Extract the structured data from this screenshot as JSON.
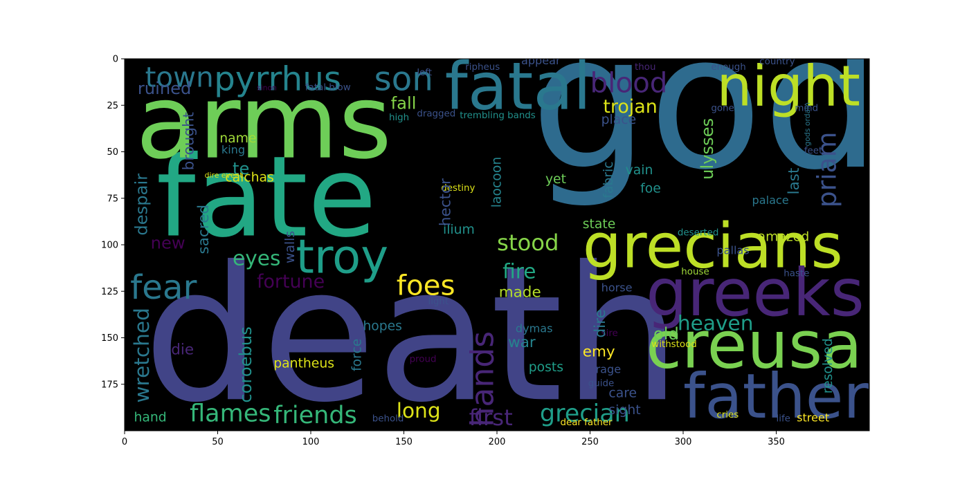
{
  "chart_data": {
    "type": "wordcloud-image",
    "title": "",
    "xlabel": "",
    "ylabel": "",
    "xlim": [
      0,
      400
    ],
    "ylim": [
      200,
      0
    ],
    "xticks": [
      0,
      50,
      100,
      150,
      200,
      250,
      300,
      350
    ],
    "yticks": [
      0,
      25,
      50,
      75,
      100,
      125,
      150,
      175
    ],
    "background": "#000000",
    "words": [
      {
        "text": "gods",
        "x": 218,
        "y": 58,
        "size": 100,
        "color": "#2e6b8e",
        "rot": 0
      },
      {
        "text": "death",
        "x": 10,
        "y": 183,
        "size": 100,
        "color": "#414487",
        "rot": 0
      },
      {
        "text": "fate",
        "x": 17,
        "y": 95,
        "size": 60,
        "color": "#22a884",
        "rot": 0
      },
      {
        "text": "arms",
        "x": 6,
        "y": 53,
        "size": 55,
        "color": "#6ece58",
        "rot": 0
      },
      {
        "text": "fatal",
        "x": 172,
        "y": 27,
        "size": 35,
        "color": "#2a788e",
        "rot": 0
      },
      {
        "text": "night",
        "x": 318,
        "y": 25,
        "size": 30,
        "color": "#bddf26",
        "rot": 0
      },
      {
        "text": "grecians",
        "x": 246,
        "y": 112,
        "size": 33,
        "color": "#bddf26",
        "rot": 0
      },
      {
        "text": "greeks",
        "x": 280,
        "y": 138,
        "size": 35,
        "color": "#482677",
        "rot": 0
      },
      {
        "text": "creusa",
        "x": 280,
        "y": 166,
        "size": 35,
        "color": "#7ad151",
        "rot": 0
      },
      {
        "text": "father",
        "x": 300,
        "y": 193,
        "size": 33,
        "color": "#3b528b",
        "rot": 0
      },
      {
        "text": "troy",
        "x": 92,
        "y": 115,
        "size": 25,
        "color": "#1f9e89",
        "rot": 0
      },
      {
        "text": "pyrrhus",
        "x": 48,
        "y": 17,
        "size": 18,
        "color": "#25848e",
        "rot": 0
      },
      {
        "text": "son",
        "x": 134,
        "y": 17,
        "size": 18,
        "color": "#2a788e",
        "rot": 0
      },
      {
        "text": "town",
        "x": 11,
        "y": 15,
        "size": 15,
        "color": "#2a788e",
        "rot": 0
      },
      {
        "text": "ruined",
        "x": 7,
        "y": 19,
        "size": 9,
        "color": "#3b528b",
        "rot": 0
      },
      {
        "text": "blood",
        "x": 250,
        "y": 18,
        "size": 15,
        "color": "#482677",
        "rot": 0
      },
      {
        "text": "trojan",
        "x": 257,
        "y": 29,
        "size": 10,
        "color": "#dde318",
        "rot": 0
      },
      {
        "text": "fall",
        "x": 143,
        "y": 27,
        "size": 9,
        "color": "#86d549",
        "rot": 0
      },
      {
        "text": "fear",
        "x": 3,
        "y": 129,
        "size": 18,
        "color": "#2a788e",
        "rot": 0
      },
      {
        "text": "foes",
        "x": 146,
        "y": 127,
        "size": 15,
        "color": "#fde725",
        "rot": 0
      },
      {
        "text": "stood",
        "x": 200,
        "y": 103,
        "size": 12,
        "color": "#86d549",
        "rot": 0
      },
      {
        "text": "fire",
        "x": 203,
        "y": 118,
        "size": 11,
        "color": "#22a884",
        "rot": 0
      },
      {
        "text": "eyes",
        "x": 58,
        "y": 111,
        "size": 11,
        "color": "#35b779",
        "rot": 0
      },
      {
        "text": "fortune",
        "x": 71,
        "y": 123,
        "size": 10,
        "color": "#440154",
        "rot": 0
      },
      {
        "text": "new",
        "x": 14,
        "y": 102,
        "size": 9,
        "color": "#440154",
        "rot": 0
      },
      {
        "text": "made",
        "x": 201,
        "y": 128,
        "size": 8,
        "color": "#b5de2b",
        "rot": 0
      },
      {
        "text": "heaven",
        "x": 297,
        "y": 146,
        "size": 11,
        "color": "#1f9e89",
        "rot": 0
      },
      {
        "text": "old",
        "x": 284,
        "y": 151,
        "size": 9,
        "color": "#6ece58",
        "rot": 0
      },
      {
        "text": "amazed",
        "x": 340,
        "y": 98,
        "size": 7,
        "color": "#bddf26",
        "rot": 0
      },
      {
        "text": "flames",
        "x": 35,
        "y": 195,
        "size": 13,
        "color": "#35b779",
        "rot": 0
      },
      {
        "text": "friends",
        "x": 80,
        "y": 196,
        "size": 13,
        "color": "#35b779",
        "rot": 0
      },
      {
        "text": "long",
        "x": 146,
        "y": 193,
        "size": 11,
        "color": "#dde318",
        "rot": 0
      },
      {
        "text": "first",
        "x": 185,
        "y": 197,
        "size": 12,
        "color": "#482677",
        "rot": 0
      },
      {
        "text": "grecian",
        "x": 223,
        "y": 195,
        "size": 13,
        "color": "#1f9e89",
        "rot": 0
      },
      {
        "text": "pantheus",
        "x": 80,
        "y": 166,
        "size": 7,
        "color": "#dde318",
        "rot": 0
      },
      {
        "text": "war",
        "x": 206,
        "y": 155,
        "size": 8,
        "color": "#25848e",
        "rot": 0
      },
      {
        "text": "emy",
        "x": 246,
        "y": 160,
        "size": 8,
        "color": "#fde725",
        "rot": 0
      },
      {
        "text": "posts",
        "x": 217,
        "y": 168,
        "size": 7,
        "color": "#1f9e89",
        "rot": 0
      },
      {
        "text": "calchas",
        "x": 54,
        "y": 66,
        "size": 7,
        "color": "#dde318",
        "rot": 0
      },
      {
        "text": "te",
        "x": 58,
        "y": 62,
        "size": 9,
        "color": "#21918c",
        "rot": 0
      },
      {
        "text": "name",
        "x": 51,
        "y": 45,
        "size": 7,
        "color": "#a0da39",
        "rot": 0
      },
      {
        "text": "king",
        "x": 52,
        "y": 51,
        "size": 6,
        "color": "#2a788e",
        "rot": 0
      },
      {
        "text": "place",
        "x": 256,
        "y": 35,
        "size": 7,
        "color": "#3b528b",
        "rot": 0
      },
      {
        "text": "state",
        "x": 246,
        "y": 91,
        "size": 7,
        "color": "#6ece58",
        "rot": 0
      },
      {
        "text": "vain",
        "x": 269,
        "y": 62,
        "size": 7,
        "color": "#21918c",
        "rot": 0
      },
      {
        "text": "foe",
        "x": 277,
        "y": 72,
        "size": 7,
        "color": "#21918c",
        "rot": 0
      },
      {
        "text": "yet",
        "x": 226,
        "y": 67,
        "size": 7,
        "color": "#6ece58",
        "rot": 0
      },
      {
        "text": "palace",
        "x": 337,
        "y": 78,
        "size": 6,
        "color": "#2a788e",
        "rot": 0
      },
      {
        "text": "sight",
        "x": 260,
        "y": 191,
        "size": 7,
        "color": "#3b528b",
        "rot": 0
      },
      {
        "text": "care",
        "x": 260,
        "y": 182,
        "size": 7,
        "color": "#3b528b",
        "rot": 0
      },
      {
        "text": "hand",
        "x": 5,
        "y": 195,
        "size": 7,
        "color": "#35b779",
        "rot": 0
      },
      {
        "text": "hopes",
        "x": 128,
        "y": 146,
        "size": 7,
        "color": "#2a788e",
        "rot": 0
      },
      {
        "text": "die",
        "x": 25,
        "y": 159,
        "size": 8,
        "color": "#482677",
        "rot": 0
      },
      {
        "text": "dymas",
        "x": 210,
        "y": 147,
        "size": 6,
        "color": "#2a788e",
        "rot": 0
      },
      {
        "text": "rage",
        "x": 253,
        "y": 169,
        "size": 6,
        "color": "#3b528b",
        "rot": 0
      },
      {
        "text": "guide",
        "x": 249,
        "y": 176,
        "size": 5,
        "color": "#3b528b",
        "rot": 0
      },
      {
        "text": "sire",
        "x": 256,
        "y": 149,
        "size": 5,
        "color": "#440154",
        "rot": 0
      },
      {
        "text": "horse",
        "x": 256,
        "y": 125,
        "size": 6,
        "color": "#3b528b",
        "rot": 0
      },
      {
        "text": "light",
        "x": 163,
        "y": 132,
        "size": 5,
        "color": "#3b528b",
        "rot": 0
      },
      {
        "text": "ilium",
        "x": 171,
        "y": 94,
        "size": 7,
        "color": "#21918c",
        "rot": 0
      },
      {
        "text": "destiny",
        "x": 170,
        "y": 71,
        "size": 5,
        "color": "#dde318",
        "rot": 0
      },
      {
        "text": "dire event",
        "x": 43,
        "y": 64,
        "size": 4,
        "color": "#dde318",
        "rot": 0
      },
      {
        "text": "trembling bands",
        "x": 180,
        "y": 32,
        "size": 5,
        "color": "#21918c",
        "rot": 0
      },
      {
        "text": "dragged",
        "x": 157,
        "y": 31,
        "size": 5,
        "color": "#3b528b",
        "rot": 0
      },
      {
        "text": "high",
        "x": 142,
        "y": 33,
        "size": 5,
        "color": "#21918c",
        "rot": 0
      },
      {
        "text": "fatal blow",
        "x": 97,
        "y": 17,
        "size": 5,
        "color": "#3b528b",
        "rot": 0
      },
      {
        "text": "sinon",
        "x": 71,
        "y": 17,
        "size": 4,
        "color": "#440154",
        "rot": 0
      },
      {
        "text": "appear",
        "x": 213,
        "y": 3,
        "size": 6,
        "color": "#3b528b",
        "rot": 0
      },
      {
        "text": "ripheus",
        "x": 183,
        "y": 6,
        "size": 5,
        "color": "#3b528b",
        "rot": 0
      },
      {
        "text": "left",
        "x": 157,
        "y": 9,
        "size": 5,
        "color": "#3b528b",
        "rot": 0
      },
      {
        "text": "thou",
        "x": 274,
        "y": 6,
        "size": 5,
        "color": "#482677",
        "rot": 0
      },
      {
        "text": "enough",
        "x": 315,
        "y": 6,
        "size": 5,
        "color": "#3b528b",
        "rot": 0
      },
      {
        "text": "country",
        "x": 341,
        "y": 3,
        "size": 5,
        "color": "#3b528b",
        "rot": 0
      },
      {
        "text": "deserted",
        "x": 297,
        "y": 95,
        "size": 5,
        "color": "#21918c",
        "rot": 0
      },
      {
        "text": "pallas",
        "x": 318,
        "y": 105,
        "size": 6,
        "color": "#3b528b",
        "rot": 0
      },
      {
        "text": "house",
        "x": 299,
        "y": 116,
        "size": 5,
        "color": "#a0da39",
        "rot": 0
      },
      {
        "text": "haste",
        "x": 354,
        "y": 117,
        "size": 5,
        "color": "#3b528b",
        "rot": 0
      },
      {
        "text": "withstood",
        "x": 283,
        "y": 155,
        "size": 5,
        "color": "#dde318",
        "rot": 0
      },
      {
        "text": "cries",
        "x": 318,
        "y": 193,
        "size": 5,
        "color": "#dde318",
        "rot": 0
      },
      {
        "text": "life",
        "x": 350,
        "y": 195,
        "size": 5,
        "color": "#3b528b",
        "rot": 0
      },
      {
        "text": "street",
        "x": 361,
        "y": 195,
        "size": 6,
        "color": "#fde725",
        "rot": 0
      },
      {
        "text": "dear father",
        "x": 234,
        "y": 197,
        "size": 5,
        "color": "#fde725",
        "rot": 0
      },
      {
        "text": "behold",
        "x": 133,
        "y": 195,
        "size": 5,
        "color": "#3b528b",
        "rot": 0
      },
      {
        "text": "proud",
        "x": 153,
        "y": 163,
        "size": 5,
        "color": "#440154",
        "rot": 0
      },
      {
        "text": "gods ordain",
        "x": 368,
        "y": 47,
        "size": 4,
        "color": "#2a788e",
        "rot": -90
      },
      {
        "text": "mind",
        "x": 360,
        "y": 28,
        "size": 5,
        "color": "#3b528b",
        "rot": 0
      },
      {
        "text": "gone",
        "x": 315,
        "y": 28,
        "size": 5,
        "color": "#3b528b",
        "rot": 0
      },
      {
        "text": "feet",
        "x": 365,
        "y": 51,
        "size": 5,
        "color": "#3b528b",
        "rot": 0
      },
      {
        "text": "ulysses",
        "x": 316,
        "y": 65,
        "size": 9,
        "color": "#6ece58",
        "rot": -90
      },
      {
        "text": "priam",
        "x": 382,
        "y": 80,
        "size": 14,
        "color": "#3b528b",
        "rot": -90
      },
      {
        "text": "last",
        "x": 362,
        "y": 73,
        "size": 8,
        "color": "#2a788e",
        "rot": -90
      },
      {
        "text": "resolved",
        "x": 380,
        "y": 180,
        "size": 7,
        "color": "#21918c",
        "rot": -90
      },
      {
        "text": "hands",
        "x": 198,
        "y": 198,
        "size": 17,
        "color": "#482677",
        "rot": -90
      },
      {
        "text": "wretched",
        "x": 13,
        "y": 185,
        "size": 11,
        "color": "#2a788e",
        "rot": -90
      },
      {
        "text": "coroebus",
        "x": 68,
        "y": 185,
        "size": 9,
        "color": "#21918c",
        "rot": -90
      },
      {
        "text": "despair",
        "x": 12,
        "y": 95,
        "size": 9,
        "color": "#2a788e",
        "rot": -90
      },
      {
        "text": "brought",
        "x": 37,
        "y": 60,
        "size": 8,
        "color": "#3b528b",
        "rot": -90
      },
      {
        "text": "sacred",
        "x": 45,
        "y": 105,
        "size": 8,
        "color": "#2a788e",
        "rot": -90
      },
      {
        "text": "walls",
        "x": 91,
        "y": 110,
        "size": 7,
        "color": "#3b528b",
        "rot": -90
      },
      {
        "text": "hector",
        "x": 175,
        "y": 90,
        "size": 8,
        "color": "#3b528b",
        "rot": -90
      },
      {
        "text": "laocoon",
        "x": 202,
        "y": 80,
        "size": 7,
        "color": "#25848e",
        "rot": -90
      },
      {
        "text": "fabric",
        "x": 262,
        "y": 75,
        "size": 7,
        "color": "#2a788e",
        "rot": -90
      },
      {
        "text": "dire",
        "x": 258,
        "y": 150,
        "size": 8,
        "color": "#2a788e",
        "rot": -90
      },
      {
        "text": "force",
        "x": 127,
        "y": 168,
        "size": 7,
        "color": "#2a788e",
        "rot": -90
      }
    ]
  }
}
